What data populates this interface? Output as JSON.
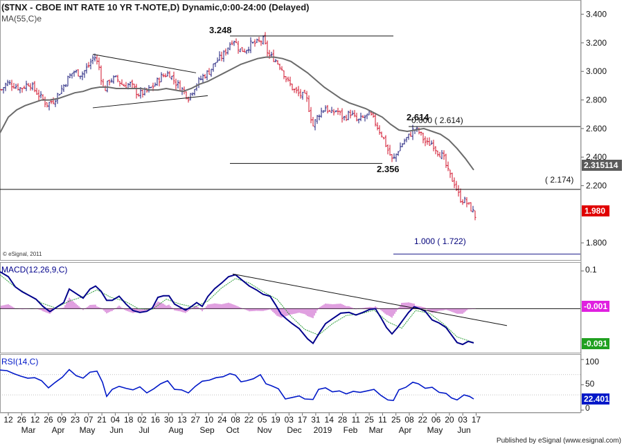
{
  "header": {
    "title": "($TNX - CBOE INT RATE 10 YR T-NOTE,D) Dynamic,0:00-24:00 (Delayed)",
    "ma_label": "MA(55,C)e",
    "copyright": "© eSignal, 2011",
    "footer": "Published by eSignal (www.esignal.com)"
  },
  "colors": {
    "up": "#1a1a7a",
    "down": "#d0102a",
    "ma": "#6b6b6b",
    "macd": "#00008b",
    "signal": "#2e9e3a",
    "hist": "#c040c0",
    "rsi": "#0018c8",
    "last_price_bg": "#e00000",
    "ma_value_bg": "#5a5a5a",
    "hist_value_bg": "#e020e0",
    "macd_value_bg": "#20a020",
    "rsi_value_bg": "#0018c8"
  },
  "chart_data": {
    "type": "candlestick",
    "title": "($TNX - CBOE INT RATE 10 YR T-NOTE,D) Dynamic,0:00-24:00 (Delayed)",
    "price_axis": {
      "ylim": [
        1.68,
        3.49
      ],
      "ticks": [
        "3.400",
        "3.200",
        "3.000",
        "2.800",
        "2.600",
        "2.400",
        "2.200",
        "1.800"
      ]
    },
    "last_price": "1.980",
    "ma_value": "2.315114",
    "ma_path": [
      [
        0,
        2.57
      ],
      [
        12,
        2.68
      ],
      [
        24,
        2.73
      ],
      [
        36,
        2.76
      ],
      [
        48,
        2.78
      ],
      [
        60,
        2.8
      ],
      [
        72,
        2.8
      ],
      [
        84,
        2.81
      ],
      [
        96,
        2.83
      ],
      [
        108,
        2.85
      ],
      [
        120,
        2.86
      ],
      [
        132,
        2.88
      ],
      [
        144,
        2.89
      ],
      [
        156,
        2.89
      ],
      [
        168,
        2.88
      ],
      [
        180,
        2.88
      ],
      [
        192,
        2.88
      ],
      [
        204,
        2.88
      ],
      [
        216,
        2.87
      ],
      [
        228,
        2.87
      ],
      [
        240,
        2.88
      ],
      [
        252,
        2.87
      ],
      [
        264,
        2.86
      ],
      [
        276,
        2.88
      ],
      [
        288,
        2.91
      ],
      [
        300,
        2.93
      ],
      [
        312,
        2.96
      ],
      [
        324,
        2.99
      ],
      [
        336,
        3.02
      ],
      [
        348,
        3.05
      ],
      [
        360,
        3.07
      ],
      [
        372,
        3.09
      ],
      [
        384,
        3.1
      ],
      [
        396,
        3.1
      ],
      [
        408,
        3.09
      ],
      [
        420,
        3.07
      ],
      [
        432,
        3.03
      ],
      [
        444,
        2.99
      ],
      [
        456,
        2.94
      ],
      [
        468,
        2.89
      ],
      [
        480,
        2.85
      ],
      [
        492,
        2.81
      ],
      [
        504,
        2.78
      ],
      [
        516,
        2.76
      ],
      [
        528,
        2.74
      ],
      [
        540,
        2.71
      ],
      [
        552,
        2.68
      ],
      [
        564,
        2.63
      ],
      [
        576,
        2.59
      ],
      [
        588,
        2.58
      ],
      [
        600,
        2.59
      ],
      [
        612,
        2.6
      ],
      [
        624,
        2.58
      ],
      [
        636,
        2.56
      ],
      [
        648,
        2.52
      ],
      [
        660,
        2.46
      ],
      [
        672,
        2.39
      ],
      [
        684,
        2.31
      ]
    ],
    "price_anchors": [
      [
        0,
        2.86
      ],
      [
        10,
        2.92
      ],
      [
        22,
        2.9
      ],
      [
        30,
        2.88
      ],
      [
        42,
        2.92
      ],
      [
        55,
        2.84
      ],
      [
        68,
        2.77
      ],
      [
        78,
        2.8
      ],
      [
        88,
        2.87
      ],
      [
        98,
        2.95
      ],
      [
        106,
        3.0
      ],
      [
        118,
        2.98
      ],
      [
        128,
        3.04
      ],
      [
        136,
        3.11
      ],
      [
        143,
        3.03
      ],
      [
        150,
        2.86
      ],
      [
        158,
        2.94
      ],
      [
        168,
        2.95
      ],
      [
        178,
        2.9
      ],
      [
        188,
        2.91
      ],
      [
        200,
        2.84
      ],
      [
        212,
        2.86
      ],
      [
        222,
        2.9
      ],
      [
        232,
        2.96
      ],
      [
        244,
        2.99
      ],
      [
        252,
        2.93
      ],
      [
        262,
        2.88
      ],
      [
        272,
        2.82
      ],
      [
        282,
        2.9
      ],
      [
        292,
        2.96
      ],
      [
        302,
        3.0
      ],
      [
        312,
        3.07
      ],
      [
        322,
        3.11
      ],
      [
        330,
        3.18
      ],
      [
        337,
        3.23
      ],
      [
        346,
        3.15
      ],
      [
        354,
        3.15
      ],
      [
        362,
        3.19
      ],
      [
        372,
        3.2
      ],
      [
        380,
        3.22
      ],
      [
        388,
        3.11
      ],
      [
        396,
        3.09
      ],
      [
        406,
        3.03
      ],
      [
        414,
        2.94
      ],
      [
        424,
        2.87
      ],
      [
        432,
        2.84
      ],
      [
        442,
        2.82
      ],
      [
        452,
        2.62
      ],
      [
        460,
        2.7
      ],
      [
        470,
        2.75
      ],
      [
        478,
        2.7
      ],
      [
        486,
        2.73
      ],
      [
        496,
        2.67
      ],
      [
        506,
        2.71
      ],
      [
        516,
        2.65
      ],
      [
        526,
        2.68
      ],
      [
        534,
        2.7
      ],
      [
        542,
        2.64
      ],
      [
        552,
        2.55
      ],
      [
        560,
        2.45
      ],
      [
        567,
        2.37
      ],
      [
        575,
        2.45
      ],
      [
        583,
        2.51
      ],
      [
        591,
        2.55
      ],
      [
        598,
        2.6
      ],
      [
        606,
        2.57
      ],
      [
        616,
        2.49
      ],
      [
        624,
        2.5
      ],
      [
        632,
        2.44
      ],
      [
        640,
        2.4
      ],
      [
        648,
        2.28
      ],
      [
        656,
        2.22
      ],
      [
        664,
        2.11
      ],
      [
        672,
        2.09
      ],
      [
        680,
        2.04
      ],
      [
        687,
        1.98
      ]
    ],
    "annotations": [
      {
        "label": "3.248",
        "value": 3.248
      },
      {
        "label": "2.614",
        "value": 2.614
      },
      {
        "label": "2.356",
        "value": 2.356
      },
      {
        "label": "0.000 ( 2.614)",
        "value": 2.614
      },
      {
        "label": "( 2.174)",
        "value": 2.174
      },
      {
        "label": "1.000 ( 1.722)",
        "value": 1.722
      }
    ],
    "macd": {
      "label": "MACD(12,26,9,C)",
      "ylim": [
        -0.115,
        0.12
      ],
      "tick": "0.1",
      "hist_value": "-0.001",
      "macd_value": "-0.091",
      "macd_path": [
        [
          0,
          0.098
        ],
        [
          12,
          0.085
        ],
        [
          22,
          0.058
        ],
        [
          32,
          0.045
        ],
        [
          42,
          0.035
        ],
        [
          52,
          0.025
        ],
        [
          62,
          0.006
        ],
        [
          72,
          -0.008
        ],
        [
          82,
          0.004
        ],
        [
          92,
          0.016
        ],
        [
          100,
          0.052
        ],
        [
          110,
          0.04
        ],
        [
          120,
          0.028
        ],
        [
          130,
          0.052
        ],
        [
          138,
          0.06
        ],
        [
          146,
          0.046
        ],
        [
          154,
          0.022
        ],
        [
          162,
          0.022
        ],
        [
          172,
          0.033
        ],
        [
          182,
          0.012
        ],
        [
          192,
          -0.005
        ],
        [
          202,
          -0.01
        ],
        [
          212,
          -0.007
        ],
        [
          220,
          0.002
        ],
        [
          228,
          0.03
        ],
        [
          236,
          0.034
        ],
        [
          244,
          0.034
        ],
        [
          252,
          0.012
        ],
        [
          260,
          0.004
        ],
        [
          268,
          -0.004
        ],
        [
          276,
          0.005
        ],
        [
          284,
          0.016
        ],
        [
          292,
          0.006
        ],
        [
          300,
          0.032
        ],
        [
          310,
          0.053
        ],
        [
          320,
          0.068
        ],
        [
          330,
          0.085
        ],
        [
          340,
          0.09
        ],
        [
          350,
          0.075
        ],
        [
          360,
          0.06
        ],
        [
          370,
          0.05
        ],
        [
          380,
          0.038
        ],
        [
          390,
          0.033
        ],
        [
          398,
          0.01
        ],
        [
          406,
          -0.015
        ],
        [
          414,
          -0.028
        ],
        [
          422,
          -0.04
        ],
        [
          432,
          -0.053
        ],
        [
          444,
          -0.08
        ],
        [
          452,
          -0.092
        ],
        [
          462,
          -0.062
        ],
        [
          470,
          -0.04
        ],
        [
          480,
          -0.027
        ],
        [
          492,
          -0.012
        ],
        [
          504,
          -0.01
        ],
        [
          514,
          -0.017
        ],
        [
          524,
          -0.01
        ],
        [
          534,
          -0.002
        ],
        [
          542,
          0.0
        ],
        [
          550,
          -0.024
        ],
        [
          558,
          -0.05
        ],
        [
          566,
          -0.067
        ],
        [
          574,
          -0.05
        ],
        [
          582,
          -0.03
        ],
        [
          590,
          -0.01
        ],
        [
          598,
          0.005
        ],
        [
          606,
          0.0
        ],
        [
          614,
          -0.007
        ],
        [
          624,
          -0.03
        ],
        [
          634,
          -0.038
        ],
        [
          644,
          -0.05
        ],
        [
          652,
          -0.07
        ],
        [
          660,
          -0.09
        ],
        [
          668,
          -0.095
        ],
        [
          676,
          -0.087
        ],
        [
          684,
          -0.091
        ]
      ],
      "signal_path": [
        [
          0,
          0.09
        ],
        [
          20,
          0.06
        ],
        [
          40,
          0.038
        ],
        [
          60,
          0.015
        ],
        [
          80,
          0.002
        ],
        [
          100,
          0.02
        ],
        [
          120,
          0.032
        ],
        [
          140,
          0.05
        ],
        [
          160,
          0.03
        ],
        [
          180,
          0.02
        ],
        [
          200,
          0.0
        ],
        [
          220,
          -0.002
        ],
        [
          240,
          0.025
        ],
        [
          260,
          0.012
        ],
        [
          280,
          0.004
        ],
        [
          300,
          0.02
        ],
        [
          320,
          0.055
        ],
        [
          340,
          0.08
        ],
        [
          360,
          0.068
        ],
        [
          380,
          0.045
        ],
        [
          400,
          0.025
        ],
        [
          420,
          -0.02
        ],
        [
          440,
          -0.055
        ],
        [
          460,
          -0.07
        ],
        [
          480,
          -0.04
        ],
        [
          500,
          -0.018
        ],
        [
          520,
          -0.014
        ],
        [
          540,
          -0.004
        ],
        [
          560,
          -0.035
        ],
        [
          580,
          -0.052
        ],
        [
          600,
          -0.005
        ],
        [
          620,
          -0.012
        ],
        [
          640,
          -0.04
        ],
        [
          660,
          -0.075
        ],
        [
          684,
          -0.09
        ]
      ],
      "trendline": [
        [
          336,
          0.092
        ],
        [
          732,
          -0.045
        ]
      ]
    },
    "rsi": {
      "label": "RSI(14,C)",
      "ylim": [
        -4,
        108
      ],
      "ticks": [
        "100",
        "50",
        "0"
      ],
      "value": "22.401",
      "path": [
        [
          0,
          79
        ],
        [
          10,
          78
        ],
        [
          20,
          72
        ],
        [
          30,
          67
        ],
        [
          40,
          63
        ],
        [
          50,
          64
        ],
        [
          60,
          58
        ],
        [
          70,
          44
        ],
        [
          80,
          55
        ],
        [
          90,
          65
        ],
        [
          100,
          80
        ],
        [
          110,
          68
        ],
        [
          120,
          63
        ],
        [
          130,
          75
        ],
        [
          140,
          77
        ],
        [
          148,
          55
        ],
        [
          154,
          27
        ],
        [
          162,
          41
        ],
        [
          172,
          47
        ],
        [
          182,
          43
        ],
        [
          192,
          40
        ],
        [
          202,
          46
        ],
        [
          212,
          34
        ],
        [
          222,
          42
        ],
        [
          232,
          52
        ],
        [
          242,
          58
        ],
        [
          252,
          41
        ],
        [
          262,
          40
        ],
        [
          272,
          34
        ],
        [
          282,
          47
        ],
        [
          292,
          57
        ],
        [
          302,
          59
        ],
        [
          312,
          64
        ],
        [
          322,
          66
        ],
        [
          332,
          72
        ],
        [
          340,
          69
        ],
        [
          348,
          56
        ],
        [
          356,
          58
        ],
        [
          366,
          62
        ],
        [
          376,
          70
        ],
        [
          384,
          52
        ],
        [
          392,
          48
        ],
        [
          402,
          42
        ],
        [
          412,
          22
        ],
        [
          422,
          25
        ],
        [
          432,
          28
        ],
        [
          440,
          22
        ],
        [
          452,
          21
        ],
        [
          460,
          41
        ],
        [
          470,
          44
        ],
        [
          480,
          36
        ],
        [
          490,
          38
        ],
        [
          500,
          32
        ],
        [
          510,
          37
        ],
        [
          520,
          35
        ],
        [
          530,
          38
        ],
        [
          540,
          41
        ],
        [
          550,
          29
        ],
        [
          560,
          20
        ],
        [
          568,
          19
        ],
        [
          576,
          40
        ],
        [
          586,
          45
        ],
        [
          596,
          55
        ],
        [
          604,
          52
        ],
        [
          614,
          43
        ],
        [
          624,
          45
        ],
        [
          634,
          35
        ],
        [
          644,
          33
        ],
        [
          652,
          24
        ],
        [
          660,
          20
        ],
        [
          670,
          30
        ],
        [
          678,
          27
        ],
        [
          684,
          22
        ]
      ]
    },
    "x_axis": {
      "day_ticks": [
        "12",
        "26",
        "12",
        "26",
        "09",
        "23",
        "07",
        "21",
        "04",
        "18",
        "02",
        "16",
        "30",
        "13",
        "27",
        "10",
        "24",
        "08",
        "22",
        "05",
        "19",
        "03",
        "17",
        "31",
        "14",
        "28",
        "11",
        "25",
        "11",
        "25",
        "08",
        "22",
        "06",
        "20",
        "03",
        "17"
      ],
      "month_labels": [
        "Mar",
        "Apr",
        "May",
        "Jun",
        "Jul",
        "Aug",
        "Sep",
        "Oct",
        "Nov",
        "Dec",
        "2019",
        "Feb",
        "Mar",
        "Apr",
        "May",
        "Jun"
      ]
    }
  }
}
